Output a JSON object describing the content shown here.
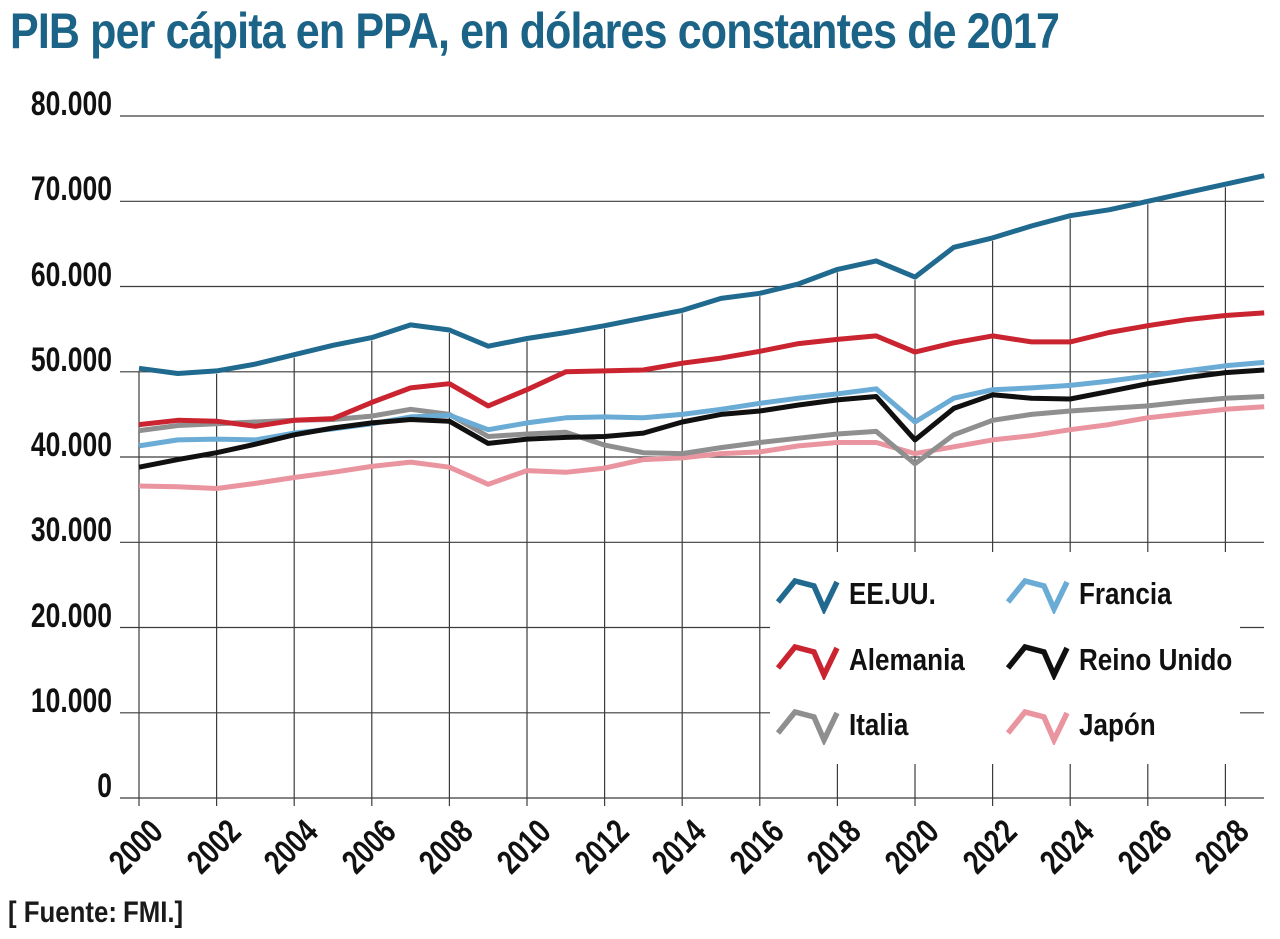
{
  "source": {
    "label": "[ Fuente:",
    "value": "FMI.]"
  },
  "chart_data": {
    "type": "line",
    "title": "PIB per cápita en PPA, en dólares constantes de 2017",
    "xlabel": "",
    "ylabel": "",
    "ylim": [
      0,
      80000
    ],
    "grid": true,
    "grid_color": "#3C3C3C",
    "text_color": "#111111",
    "title_color": "#1C6487",
    "legend_position": "inside-bottom-right",
    "yticks": [
      0,
      10000,
      20000,
      30000,
      40000,
      50000,
      60000,
      70000,
      80000
    ],
    "ytick_labels": [
      "0",
      "10.000",
      "20.000",
      "30.000",
      "40.000",
      "50.000",
      "60.000",
      "70.000",
      "80.000"
    ],
    "xticks": [
      2000,
      2002,
      2004,
      2006,
      2008,
      2010,
      2012,
      2014,
      2016,
      2018,
      2020,
      2022,
      2024,
      2026,
      2028
    ],
    "x": [
      2000,
      2001,
      2002,
      2003,
      2004,
      2005,
      2006,
      2007,
      2008,
      2009,
      2010,
      2011,
      2012,
      2013,
      2014,
      2015,
      2016,
      2017,
      2018,
      2019,
      2020,
      2021,
      2022,
      2023,
      2024,
      2025,
      2026,
      2027,
      2028,
      2029
    ],
    "series": [
      {
        "name": "EE.UU.",
        "color": "#20698F",
        "values": [
          50400,
          49800,
          50100,
          50900,
          52000,
          53100,
          54000,
          55500,
          54900,
          53000,
          53900,
          54600,
          55400,
          56300,
          57200,
          58600,
          59200,
          60300,
          62000,
          63000,
          61100,
          64600,
          65700,
          67100,
          68300,
          69000,
          70000,
          71000,
          72000,
          73000
        ]
      },
      {
        "name": "Alemania",
        "color": "#C92430",
        "values": [
          43800,
          44300,
          44200,
          43600,
          44300,
          44500,
          46400,
          48100,
          48600,
          46000,
          47900,
          50000,
          50100,
          50200,
          51000,
          51600,
          52400,
          53300,
          53800,
          54200,
          52300,
          53400,
          54200,
          53500,
          53500,
          54600,
          55400,
          56100,
          56600,
          56900
        ]
      },
      {
        "name": "Italia",
        "color": "#8F8F8F",
        "values": [
          43100,
          43700,
          43900,
          44100,
          44300,
          44400,
          44800,
          45600,
          45000,
          42400,
          42700,
          42900,
          41400,
          40500,
          40400,
          41100,
          41700,
          42200,
          42700,
          43000,
          39200,
          42600,
          44300,
          45000,
          45400,
          45700,
          46000,
          46500,
          46900,
          47100
        ]
      },
      {
        "name": "Francia",
        "color": "#6AACD5",
        "values": [
          41300,
          42000,
          42100,
          42000,
          42800,
          43300,
          43900,
          44700,
          44900,
          43200,
          44000,
          44600,
          44700,
          44600,
          45000,
          45600,
          46300,
          46900,
          47400,
          48000,
          44100,
          46900,
          47900,
          48100,
          48400,
          48900,
          49500,
          50100,
          50700,
          51100
        ]
      },
      {
        "name": "Reino Unido",
        "color": "#101010",
        "values": [
          38800,
          39700,
          40500,
          41500,
          42600,
          43400,
          44000,
          44400,
          44200,
          41600,
          42100,
          42300,
          42400,
          42800,
          44100,
          45000,
          45400,
          46100,
          46700,
          47100,
          42000,
          45700,
          47300,
          46900,
          46800,
          47700,
          48600,
          49300,
          49900,
          50200
        ]
      },
      {
        "name": "Japón",
        "color": "#E9949E",
        "values": [
          36600,
          36500,
          36300,
          36900,
          37600,
          38200,
          38900,
          39400,
          38800,
          36800,
          38400,
          38200,
          38700,
          39700,
          39900,
          40400,
          40600,
          41300,
          41700,
          41700,
          40400,
          41200,
          42000,
          42500,
          43200,
          43800,
          44600,
          45100,
          45600,
          45900
        ]
      }
    ],
    "draw_order": [
      5,
      2,
      3,
      1,
      4,
      0
    ],
    "legend_columns": [
      [
        0,
        1,
        2
      ],
      [
        3,
        4,
        5
      ]
    ]
  }
}
